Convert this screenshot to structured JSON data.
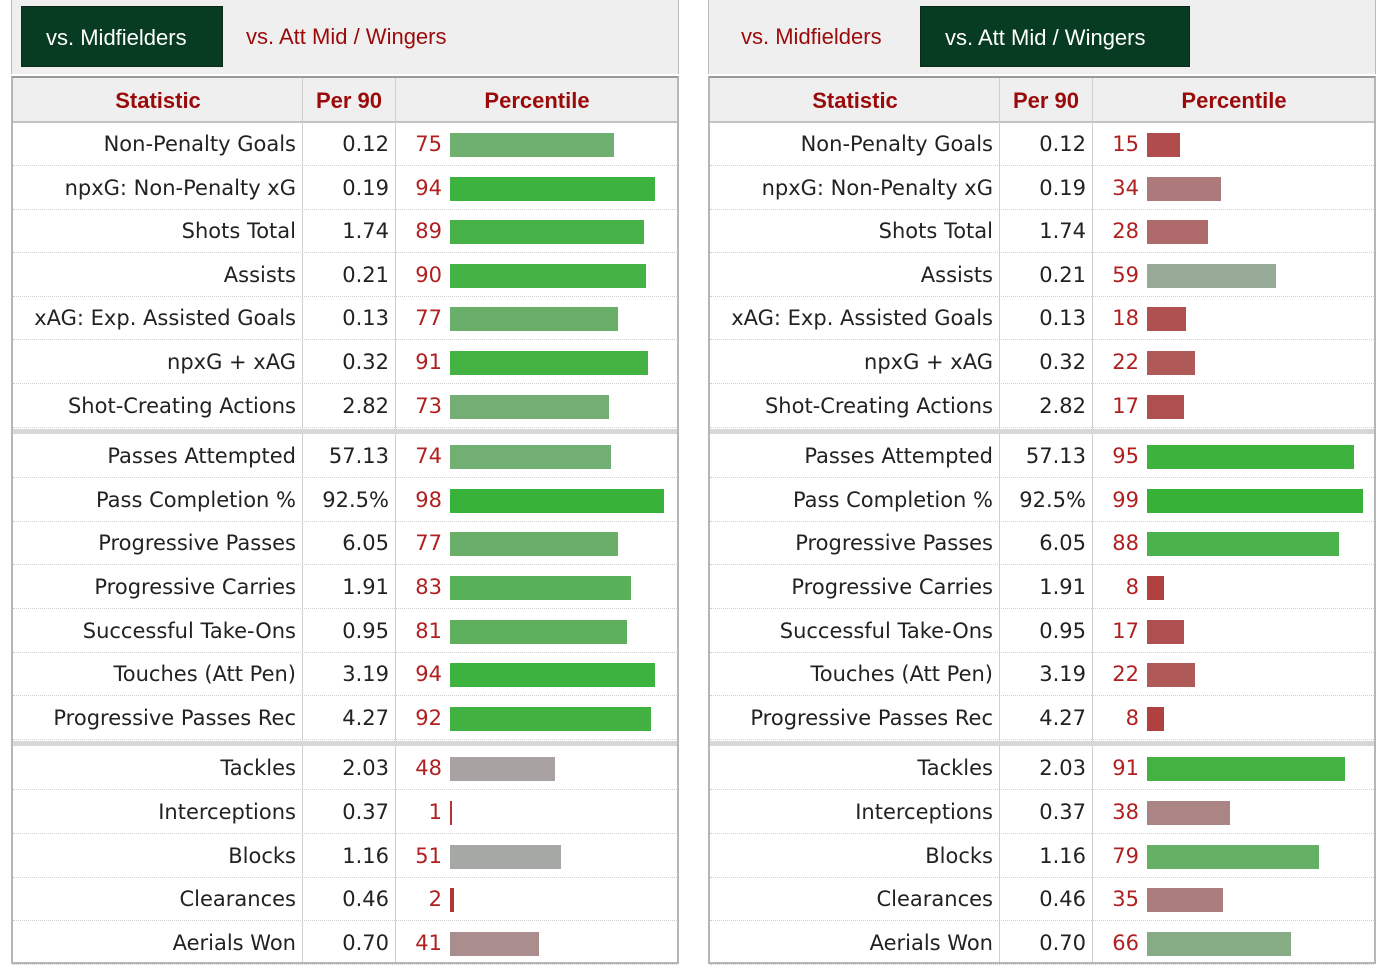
{
  "headers": {
    "statistic": "Statistic",
    "per90": "Per 90",
    "percentile": "Percentile"
  },
  "panels": [
    {
      "tabs": [
        {
          "label": "vs. Midfielders",
          "active": true
        },
        {
          "label": "vs. Att Mid / Wingers",
          "active": false
        }
      ],
      "groups": [
        [
          {
            "stat": "Non-Penalty Goals",
            "per90": "0.12",
            "percentile": 75
          },
          {
            "stat": "npxG: Non-Penalty xG",
            "per90": "0.19",
            "percentile": 94
          },
          {
            "stat": "Shots Total",
            "per90": "1.74",
            "percentile": 89
          },
          {
            "stat": "Assists",
            "per90": "0.21",
            "percentile": 90
          },
          {
            "stat": "xAG: Exp. Assisted Goals",
            "per90": "0.13",
            "percentile": 77
          },
          {
            "stat": "npxG + xAG",
            "per90": "0.32",
            "percentile": 91
          },
          {
            "stat": "Shot-Creating Actions",
            "per90": "2.82",
            "percentile": 73
          }
        ],
        [
          {
            "stat": "Passes Attempted",
            "per90": "57.13",
            "percentile": 74
          },
          {
            "stat": "Pass Completion %",
            "per90": "92.5%",
            "percentile": 98
          },
          {
            "stat": "Progressive Passes",
            "per90": "6.05",
            "percentile": 77
          },
          {
            "stat": "Progressive Carries",
            "per90": "1.91",
            "percentile": 83
          },
          {
            "stat": "Successful Take-Ons",
            "per90": "0.95",
            "percentile": 81
          },
          {
            "stat": "Touches (Att Pen)",
            "per90": "3.19",
            "percentile": 94
          },
          {
            "stat": "Progressive Passes Rec",
            "per90": "4.27",
            "percentile": 92
          }
        ],
        [
          {
            "stat": "Tackles",
            "per90": "2.03",
            "percentile": 48
          },
          {
            "stat": "Interceptions",
            "per90": "0.37",
            "percentile": 1
          },
          {
            "stat": "Blocks",
            "per90": "1.16",
            "percentile": 51
          },
          {
            "stat": "Clearances",
            "per90": "0.46",
            "percentile": 2
          },
          {
            "stat": "Aerials Won",
            "per90": "0.70",
            "percentile": 41
          }
        ]
      ]
    },
    {
      "tabs": [
        {
          "label": "vs. Midfielders",
          "active": false
        },
        {
          "label": "vs. Att Mid / Wingers",
          "active": true
        }
      ],
      "groups": [
        [
          {
            "stat": "Non-Penalty Goals",
            "per90": "0.12",
            "percentile": 15
          },
          {
            "stat": "npxG: Non-Penalty xG",
            "per90": "0.19",
            "percentile": 34
          },
          {
            "stat": "Shots Total",
            "per90": "1.74",
            "percentile": 28
          },
          {
            "stat": "Assists",
            "per90": "0.21",
            "percentile": 59
          },
          {
            "stat": "xAG: Exp. Assisted Goals",
            "per90": "0.13",
            "percentile": 18
          },
          {
            "stat": "npxG + xAG",
            "per90": "0.32",
            "percentile": 22
          },
          {
            "stat": "Shot-Creating Actions",
            "per90": "2.82",
            "percentile": 17
          }
        ],
        [
          {
            "stat": "Passes Attempted",
            "per90": "57.13",
            "percentile": 95
          },
          {
            "stat": "Pass Completion %",
            "per90": "92.5%",
            "percentile": 99
          },
          {
            "stat": "Progressive Passes",
            "per90": "6.05",
            "percentile": 88
          },
          {
            "stat": "Progressive Carries",
            "per90": "1.91",
            "percentile": 8
          },
          {
            "stat": "Successful Take-Ons",
            "per90": "0.95",
            "percentile": 17
          },
          {
            "stat": "Touches (Att Pen)",
            "per90": "3.19",
            "percentile": 22
          },
          {
            "stat": "Progressive Passes Rec",
            "per90": "4.27",
            "percentile": 8
          }
        ],
        [
          {
            "stat": "Tackles",
            "per90": "2.03",
            "percentile": 91
          },
          {
            "stat": "Interceptions",
            "per90": "0.37",
            "percentile": 38
          },
          {
            "stat": "Blocks",
            "per90": "1.16",
            "percentile": 79
          },
          {
            "stat": "Clearances",
            "per90": "0.46",
            "percentile": 35
          },
          {
            "stat": "Aerials Won",
            "per90": "0.70",
            "percentile": 66
          }
        ]
      ]
    }
  ]
}
